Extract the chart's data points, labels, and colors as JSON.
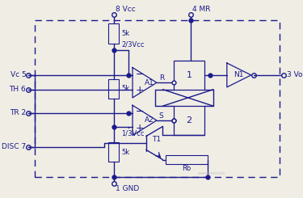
{
  "bg_color": "#f0ede4",
  "line_color": "#1a1a8c",
  "text_color": "#1a1a8c",
  "labels": {
    "vcc": "8 Vcc",
    "mr": "4 MR",
    "gnd": "1 GND",
    "vc": "Vc 5",
    "th": "TH 6",
    "tr": "TR 2",
    "disc": "DISC 7",
    "vo": "3 Vo",
    "r23vcc": "2/3Vcc",
    "r13vcc": "1/3Vcc",
    "r_node": "R",
    "s_node": "S",
    "rb": "Rb",
    "a1": "A1",
    "a2": "A2",
    "t1": "T1",
    "n1": "N1",
    "box1": "1",
    "box2": "2",
    "res5k_1": "5k",
    "res5k_2": "5k",
    "res5k_3": "5k"
  },
  "figsize": [
    3.75,
    2.45
  ],
  "dpi": 100
}
